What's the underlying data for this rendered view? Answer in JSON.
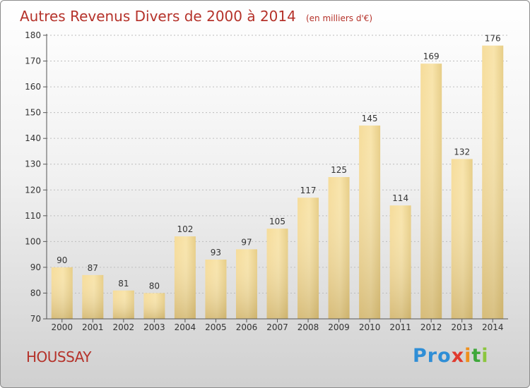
{
  "title": "Autres Revenus Divers de 2000 à 2014",
  "unit": "(en milliers d'€)",
  "place": "HOUSSAY",
  "logo": {
    "text": "Proxiti",
    "letters": [
      {
        "ch": "P",
        "color": "#2f8ed6"
      },
      {
        "ch": "r",
        "color": "#2f8ed6"
      },
      {
        "ch": "o",
        "color": "#2f8ed6"
      },
      {
        "ch": "x",
        "color": "#e03a2e"
      },
      {
        "ch": "i",
        "color": "#ef8f1c"
      },
      {
        "ch": "t",
        "color": "#3fa83b"
      },
      {
        "ch": "i",
        "color": "#8cc63e"
      }
    ]
  },
  "colors": {
    "title": "#b5322a",
    "bar_light": "#f8e1a2",
    "bar_dark": "#c8aa62",
    "axis": "#555555",
    "grid": "#bdbdbd"
  },
  "chart_data": {
    "type": "bar",
    "categories": [
      "2000",
      "2001",
      "2002",
      "2003",
      "2004",
      "2005",
      "2006",
      "2007",
      "2008",
      "2009",
      "2010",
      "2011",
      "2012",
      "2013",
      "2014"
    ],
    "values": [
      90,
      87,
      81,
      80,
      102,
      93,
      97,
      105,
      117,
      125,
      145,
      114,
      169,
      132,
      176
    ],
    "ylim": [
      70,
      180
    ],
    "yticks": [
      70,
      80,
      90,
      100,
      110,
      120,
      130,
      140,
      150,
      160,
      170,
      180
    ],
    "grid": true,
    "data_labels": true
  }
}
